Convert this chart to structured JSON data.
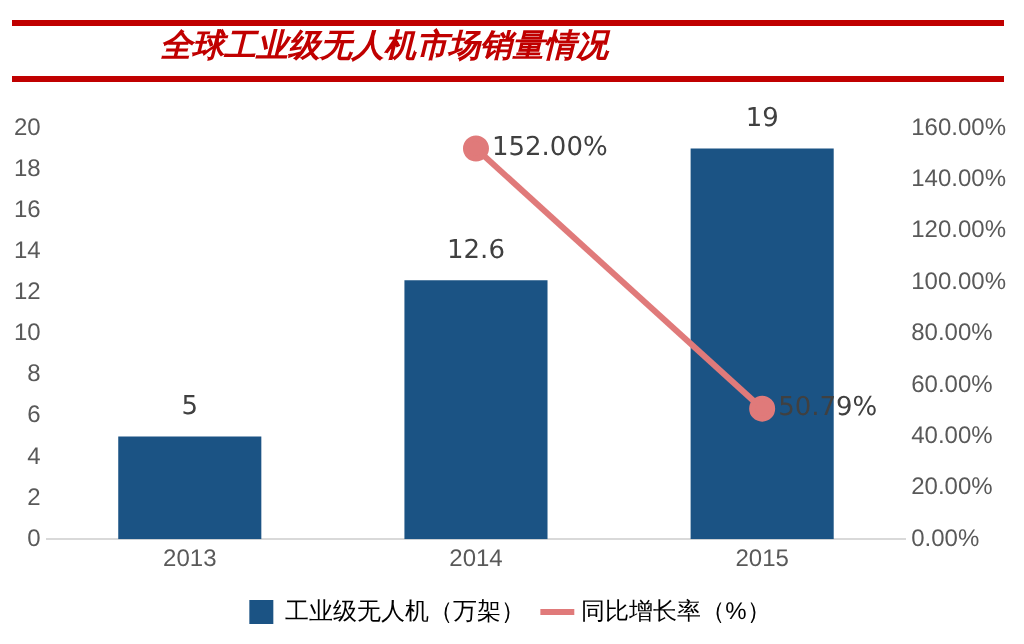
{
  "chart_data": {
    "type": "bar",
    "title": "全球工业级无人机市场销量情况",
    "categories": [
      "2013",
      "2014",
      "2015"
    ],
    "series": [
      {
        "name": "工业级无人机（万架）",
        "color": "#1b5384",
        "values": [
          5,
          12.6,
          19
        ],
        "value_labels": [
          "5",
          "12.6",
          "19"
        ]
      },
      {
        "name": "同比增长率（%）",
        "type": "line",
        "axis": "y2",
        "color": "#e07a7a",
        "values": [
          null,
          152,
          50.79
        ],
        "value_labels": [
          null,
          "152.00%",
          "50.79%"
        ]
      }
    ],
    "ylim": [
      0,
      20
    ],
    "yticks": [
      0,
      2,
      4,
      6,
      8,
      10,
      12,
      14,
      16,
      18,
      20
    ],
    "y2lim": [
      0,
      160
    ],
    "y2ticks": [
      {
        "value": 0,
        "label": "0.00%"
      },
      {
        "value": 20,
        "label": "20.00%"
      },
      {
        "value": 40,
        "label": "40.00%"
      },
      {
        "value": 60,
        "label": "60.00%"
      },
      {
        "value": 80,
        "label": "80.00%"
      },
      {
        "value": 100,
        "label": "100.00%"
      },
      {
        "value": 120,
        "label": "120.00%"
      },
      {
        "value": 140,
        "label": "140.00%"
      },
      {
        "value": 160,
        "label": "160.00%"
      }
    ],
    "grid": false,
    "legend": "bottom",
    "marker": "circle",
    "line_style": "solid"
  }
}
